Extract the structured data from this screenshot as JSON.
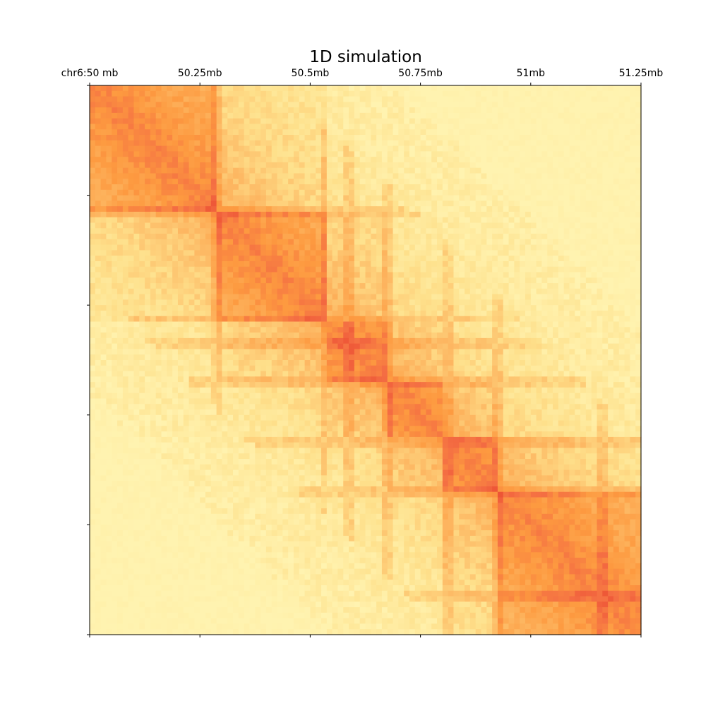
{
  "chart_data": {
    "type": "heatmap",
    "title": "1D simulation",
    "x_tick_labels": [
      "chr6:50 mb",
      "50.25mb",
      "50.5mb",
      "50.75mb",
      "51mb",
      "51.25mb"
    ],
    "x_tick_positions_mb": [
      50.0,
      50.25,
      50.5,
      50.75,
      51.0,
      51.25
    ],
    "xlim_mb": [
      50.0,
      51.25
    ],
    "ylim_mb": [
      50.0,
      51.25
    ],
    "grid": false,
    "legend": "none",
    "colormap": [
      "#fff3b0",
      "#fee08b",
      "#fdb863",
      "#fd9a40",
      "#f46d43",
      "#e8402a"
    ],
    "domains_mb": [
      [
        50.0,
        50.29
      ],
      [
        50.29,
        50.54
      ],
      [
        50.54,
        50.67
      ],
      [
        50.67,
        50.8
      ],
      [
        50.8,
        50.93
      ],
      [
        50.93,
        51.25
      ]
    ],
    "boundaries_mb": [
      50.29,
      50.53,
      50.59,
      50.68,
      50.81,
      50.93,
      51.16
    ]
  }
}
